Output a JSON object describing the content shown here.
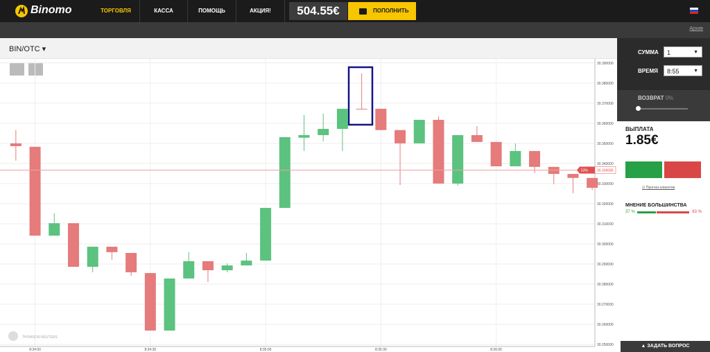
{
  "header": {
    "logo": "Binomo",
    "nav": [
      "ТОРГОВЛЯ",
      "КАССА",
      "ПОМОЩЬ",
      "АКЦИЯ!"
    ],
    "balance": "504.55€",
    "deposit": "ПОПОЛНИТЬ"
  },
  "subbar": {
    "archive": "Архив"
  },
  "asset": "BIN/OTC",
  "watermark": "THOMSON REUTERS",
  "sidebar": {
    "amount_label": "СУММА",
    "amount": "1",
    "time_label": "ВРЕМЯ",
    "time": "8:55",
    "refund_label": "ВОЗВРАТ",
    "refund": "0%",
    "payout_label": "ВЫПЛАТА",
    "payout": "1.85€",
    "forecast": "Прогноз клиентов",
    "majority_title": "МНЕНИЕ БОЛЬШИНСТВА",
    "majority_values": [
      37,
      63
    ],
    "majority_labels": [
      "37 %",
      "63 %"
    ],
    "ask": "ЗАДАТЬ ВОПРОС"
  },
  "chart_data": {
    "type": "candlestick",
    "categories": [
      null,
      "8:34:00",
      null,
      null,
      null,
      null,
      null,
      "8:34:30",
      null,
      null,
      null,
      null,
      null,
      "8:35:00",
      null,
      null,
      null,
      null,
      null,
      "8:35:30",
      null,
      null,
      null,
      null,
      null,
      "8:36:00",
      null,
      null,
      null,
      null,
      null
    ],
    "open": [
      30.35,
      30.3483,
      30.3041,
      30.3103,
      30.2886,
      30.2986,
      30.2955,
      30.2855,
      30.2569,
      30.2828,
      30.2914,
      30.2869,
      30.2893,
      30.2917,
      30.3179,
      30.3528,
      30.3541,
      30.3572,
      30.3672,
      30.3672,
      30.3566,
      30.35,
      30.3617,
      30.33,
      30.3541,
      30.3507,
      30.3386,
      30.3462,
      30.3383,
      30.3348,
      30.3328
    ],
    "high": [
      30.3566,
      30.3483,
      30.3152,
      30.3103,
      30.2986,
      30.2986,
      30.2955,
      30.2855,
      30.2828,
      30.2959,
      30.2914,
      30.2903,
      30.2955,
      30.3179,
      30.3531,
      30.3641,
      30.3648,
      30.3672,
      30.3848,
      30.3672,
      30.3566,
      30.3617,
      30.3634,
      30.3541,
      30.3586,
      30.3507,
      30.35,
      30.3462,
      30.3383,
      30.3348,
      30.3328
    ],
    "low": [
      30.3414,
      30.3041,
      30.3041,
      30.2886,
      30.2859,
      30.2921,
      30.2841,
      30.2569,
      30.2569,
      30.2828,
      30.281,
      30.2859,
      30.2893,
      30.2917,
      30.3179,
      30.3462,
      30.351,
      30.3462,
      30.3672,
      30.3566,
      30.3293,
      30.35,
      30.33,
      30.329,
      30.3507,
      30.3386,
      30.3386,
      30.3352,
      30.3297,
      30.3252,
      30.3269
    ],
    "close": [
      30.3486,
      30.3041,
      30.3103,
      30.2886,
      30.2986,
      30.2959,
      30.2859,
      30.2569,
      30.2828,
      30.2914,
      30.2869,
      30.2893,
      30.2917,
      30.3179,
      30.3531,
      30.3541,
      30.3572,
      30.3672,
      30.3672,
      30.3566,
      30.35,
      30.3617,
      30.33,
      30.3541,
      30.3507,
      30.3386,
      30.3462,
      30.3383,
      30.3348,
      30.3328,
      30.3279
    ],
    "up_color": "#5cc27f",
    "down_color": "#e57b7b",
    "ylim": [
      30.249,
      30.392
    ],
    "yticks": [
      {
        "value": 30.39,
        "label": "30.390000"
      },
      {
        "value": 30.38,
        "label": "30.380000"
      },
      {
        "value": 30.37,
        "label": "30.370000"
      },
      {
        "value": 30.36,
        "label": "30.360000"
      },
      {
        "value": 30.35,
        "label": "30.350000"
      },
      {
        "value": 30.34,
        "label": "30.340000"
      },
      {
        "value": 30.33,
        "label": "30.330000"
      },
      {
        "value": 30.32,
        "label": "30.320000"
      },
      {
        "value": 30.31,
        "label": "30.310000"
      },
      {
        "value": 30.3,
        "label": "30.300000"
      },
      {
        "value": 30.29,
        "label": "30.290000"
      },
      {
        "value": 30.28,
        "label": "30.280000"
      },
      {
        "value": 30.27,
        "label": "30.270000"
      },
      {
        "value": 30.26,
        "label": "30.260000"
      },
      {
        "value": 30.25,
        "label": "30.250000"
      }
    ],
    "grid": true,
    "price_line": {
      "value": 30.336685,
      "percent": "53%"
    }
  }
}
